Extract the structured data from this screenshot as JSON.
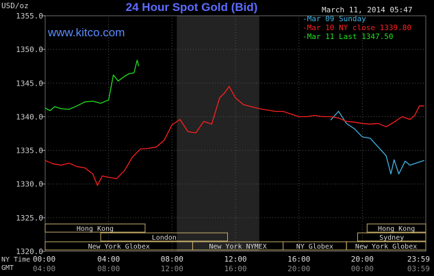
{
  "header": {
    "title": "24 Hour Spot Gold (Bid)",
    "units": "USD/oz",
    "date": "March 11, 2014 05:47",
    "site": "www.kitco.com"
  },
  "legend": [
    {
      "label": "Mar 09 Sunday",
      "color": "#3fb6e6"
    },
    {
      "label": "Mar 10 NY close 1339.80",
      "color": "#ff2020"
    },
    {
      "label": "Mar 11 Last 1347.50",
      "color": "#21e121"
    }
  ],
  "footer": {
    "ny_time_label": "NY Time",
    "gmt_label": "GMT"
  },
  "markets": [
    {
      "name": "Hong Kong",
      "start": 0,
      "end": 6.3,
      "row": 0
    },
    {
      "name": "London",
      "start": 3.5,
      "end": 11.5,
      "row": 1
    },
    {
      "name": "New York Globex",
      "start": 0,
      "end": 9.3,
      "row": 2
    },
    {
      "name": "New York NYMEX",
      "start": 9.3,
      "end": 15.0,
      "row": 2
    },
    {
      "name": "NY Globex",
      "start": 15.0,
      "end": 19.0,
      "row": 2
    },
    {
      "name": "Hong Kong",
      "start": 20.3,
      "end": 24,
      "row": 0
    },
    {
      "name": "Sydney",
      "start": 19.7,
      "end": 24,
      "row": 1
    },
    {
      "name": "New York Globex",
      "start": 19.0,
      "end": 24,
      "row": 2
    }
  ],
  "chart_data": {
    "type": "line",
    "title": "24 Hour Spot Gold (Bid)",
    "ylabel": "USD/oz",
    "ylim": [
      1320,
      1355
    ],
    "xlim": [
      0,
      24
    ],
    "yticks": [
      "1320.0",
      "1325.0",
      "1330.0",
      "1335.0",
      "1340.0",
      "1345.0",
      "1350.0",
      "1355.0"
    ],
    "xticks_ny": [
      "00:00",
      "04:00",
      "08:00",
      "12:00",
      "16:00",
      "20:00",
      "23:59"
    ],
    "xticks_gmt": [
      "04:00",
      "08:00",
      "12:00",
      "16:00",
      "20:00",
      "00:00",
      "03:59"
    ],
    "shaded_hours": [
      8.3,
      13.5
    ],
    "series": [
      {
        "name": "Mar 09 Sunday",
        "color": "#3fb6e6",
        "x": [
          18.0,
          18.5,
          19.0,
          19.5,
          20.0,
          20.5,
          21.0,
          21.5,
          21.8,
          22.0,
          22.3,
          22.7,
          23.0,
          23.5,
          23.9
        ],
        "y": [
          1339.5,
          1340.8,
          1339.0,
          1338.2,
          1337.0,
          1336.8,
          1335.5,
          1334.2,
          1331.5,
          1333.6,
          1331.5,
          1333.4,
          1332.8,
          1333.2,
          1333.5
        ]
      },
      {
        "name": "Mar 10 NY close 1339.80",
        "color": "#ff2020",
        "x": [
          0.0,
          0.5,
          1.0,
          1.5,
          2.0,
          2.5,
          3.0,
          3.3,
          3.6,
          4.0,
          4.5,
          5.0,
          5.5,
          6.0,
          6.5,
          7.0,
          7.5,
          8.0,
          8.5,
          9.0,
          9.5,
          10.0,
          10.5,
          11.0,
          11.3,
          11.6,
          12.0,
          12.5,
          13.0,
          13.5,
          14.0,
          14.5,
          15.0,
          15.5,
          16.0,
          16.5,
          17.0,
          17.5,
          18.0,
          18.5,
          19.0,
          19.5,
          20.0,
          20.5,
          21.0,
          21.5,
          22.0,
          22.5,
          23.0,
          23.3,
          23.6,
          23.9
        ],
        "y": [
          1333.5,
          1333.0,
          1332.8,
          1333.1,
          1332.6,
          1332.4,
          1331.5,
          1329.8,
          1331.2,
          1331.0,
          1330.8,
          1332.0,
          1334.0,
          1335.2,
          1335.3,
          1335.5,
          1336.5,
          1338.8,
          1339.6,
          1337.8,
          1337.6,
          1339.3,
          1338.9,
          1342.8,
          1343.5,
          1344.5,
          1342.8,
          1341.8,
          1341.5,
          1341.2,
          1341.0,
          1340.8,
          1340.8,
          1340.4,
          1340.0,
          1340.0,
          1340.2,
          1340.0,
          1340.0,
          1339.8,
          1339.3,
          1339.2,
          1339.0,
          1338.9,
          1339.0,
          1338.5,
          1339.2,
          1340.0,
          1339.6,
          1340.2,
          1341.6,
          1341.6
        ]
      },
      {
        "name": "Mar 11 Last 1347.50",
        "color": "#21e121",
        "x": [
          0.0,
          0.3,
          0.6,
          1.0,
          1.5,
          2.0,
          2.5,
          3.0,
          3.5,
          4.0,
          4.3,
          4.6,
          5.0,
          5.3,
          5.6,
          5.8,
          5.9
        ],
        "y": [
          1341.3,
          1340.9,
          1341.5,
          1341.2,
          1341.1,
          1341.6,
          1342.2,
          1342.3,
          1342.0,
          1342.5,
          1346.2,
          1345.3,
          1346.0,
          1346.4,
          1346.5,
          1348.4,
          1347.5
        ]
      }
    ]
  }
}
